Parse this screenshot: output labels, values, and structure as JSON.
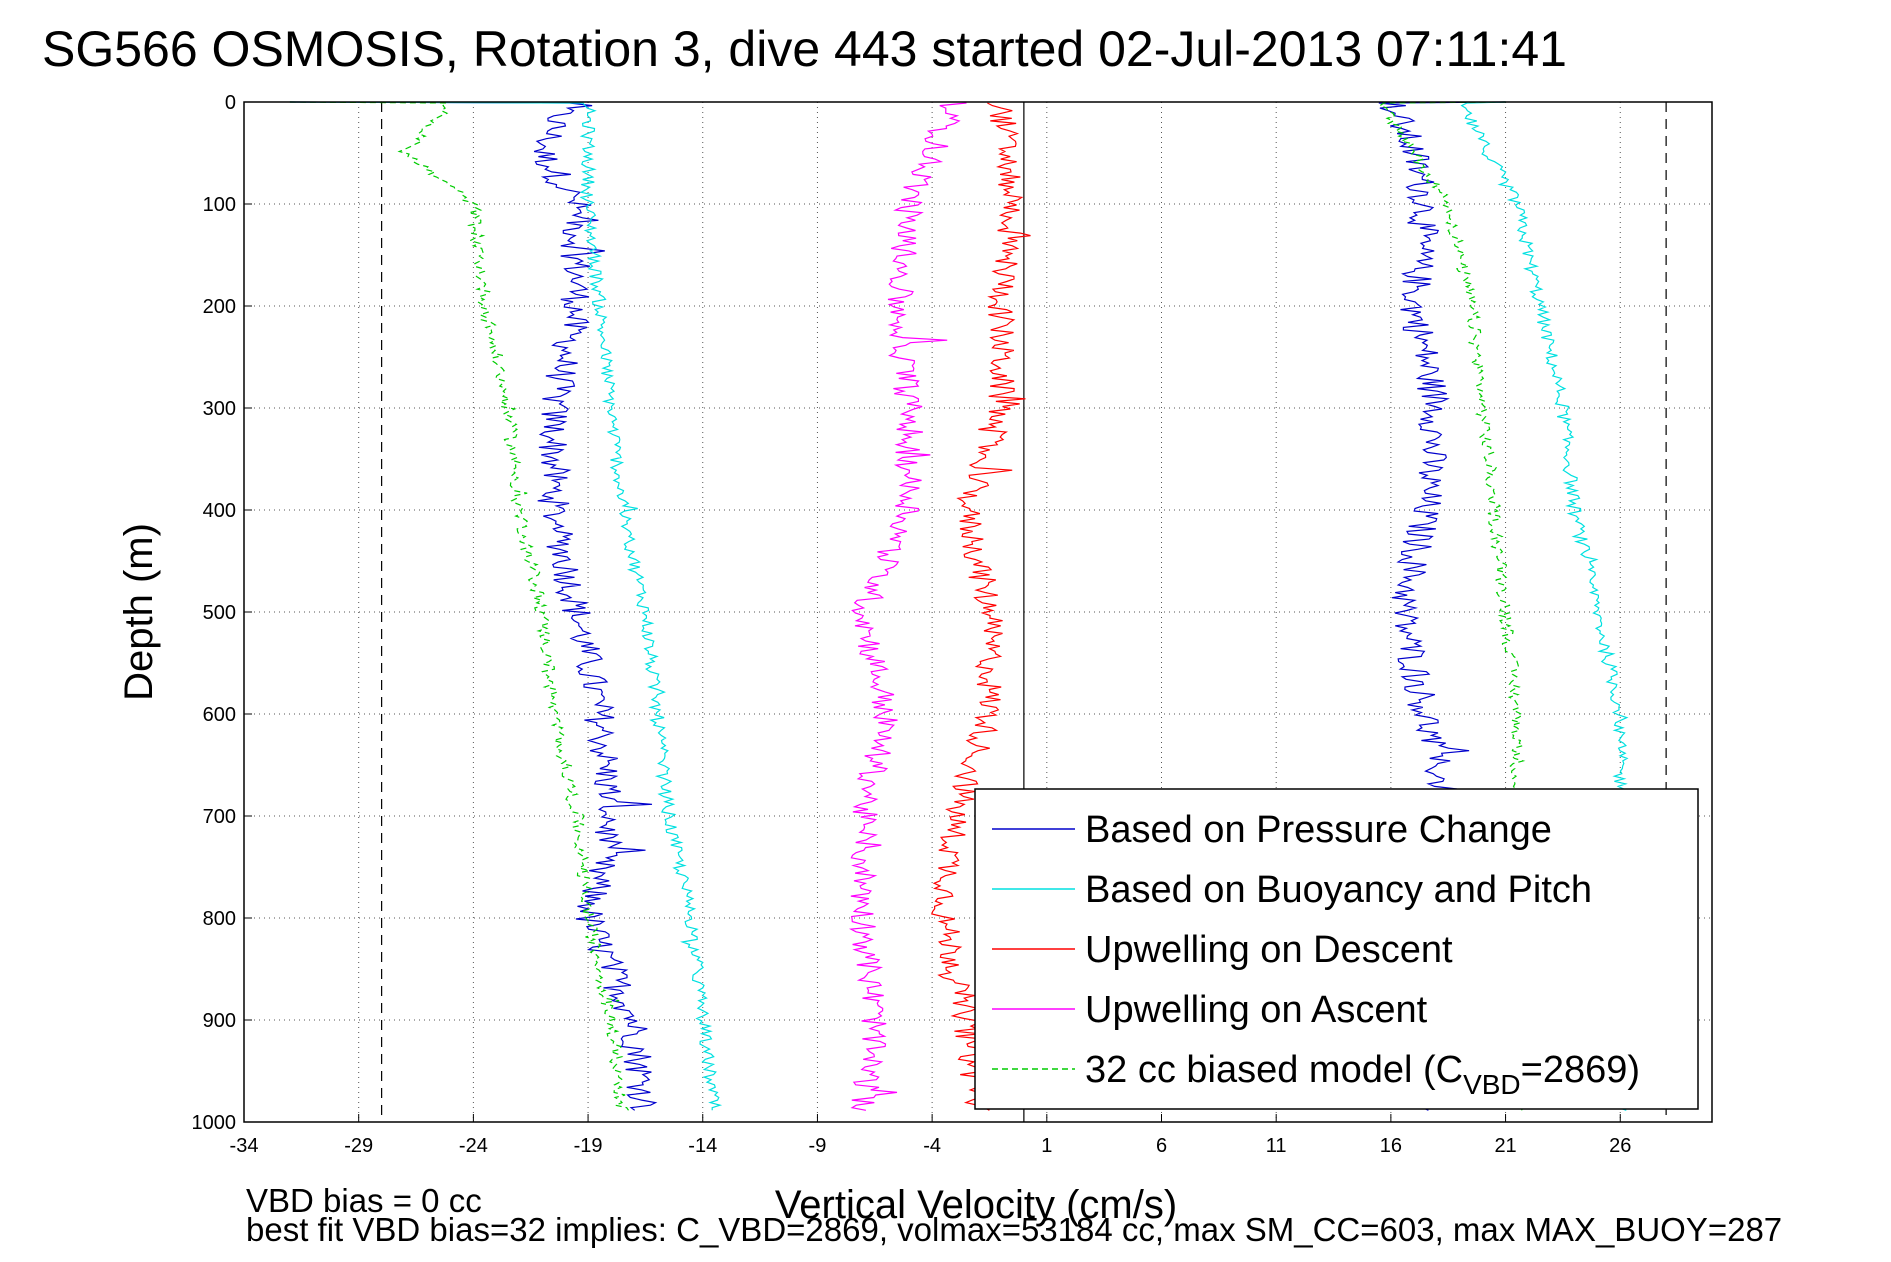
{
  "chart_data": {
    "type": "line",
    "title": "SG566 OSMOSIS, Rotation 3, dive 443 started 02-Jul-2013 07:11:41",
    "xlabel": "Vertical Velocity (cm/s)",
    "ylabel": "Depth (m)",
    "xlim": [
      -34,
      30
    ],
    "ylim": [
      0,
      1000
    ],
    "y_reversed": true,
    "xticks": [
      -34,
      -29,
      -24,
      -19,
      -14,
      -9,
      -4,
      1,
      6,
      11,
      16,
      21,
      26
    ],
    "yticks": [
      0,
      100,
      200,
      300,
      400,
      500,
      600,
      700,
      800,
      900,
      1000
    ],
    "grid": true,
    "legend_position": "bottom-right",
    "reference_lines": {
      "zero_line": 0,
      "dashed_limits": [
        -28,
        28
      ]
    },
    "series": [
      {
        "name": "Based on Pressure Change",
        "color": "#0000cc",
        "style": "solid",
        "descent": {
          "depth": [
            0,
            50,
            100,
            200,
            300,
            400,
            500,
            600,
            700,
            800,
            900,
            990
          ],
          "velocity": [
            -20,
            -21,
            -19.5,
            -19.5,
            -20.5,
            -20.5,
            -19.5,
            -18.5,
            -18,
            -19,
            -17,
            -16.5
          ]
        },
        "ascent": {
          "depth": [
            0,
            50,
            100,
            200,
            300,
            400,
            500,
            600,
            700,
            990
          ],
          "velocity": [
            16,
            17,
            17.5,
            17,
            18,
            17.5,
            16.5,
            17.5,
            18.5,
            17
          ]
        }
      },
      {
        "name": "Based on Buoyancy and Pitch",
        "color": "#00e0e0",
        "style": "solid",
        "descent": {
          "depth": [
            0,
            100,
            200,
            300,
            400,
            500,
            600,
            700,
            800,
            900,
            990
          ],
          "velocity": [
            -19,
            -19,
            -18.5,
            -18,
            -17.5,
            -16.5,
            -16,
            -15.5,
            -14.5,
            -14,
            -13.5
          ]
        },
        "ascent": {
          "depth": [
            0,
            100,
            200,
            300,
            400,
            500,
            600,
            700
          ],
          "velocity": [
            19,
            21.5,
            22.5,
            23.5,
            24,
            25,
            26,
            26
          ]
        }
      },
      {
        "name": "Upwelling on Descent",
        "color": "#ff0000",
        "style": "solid",
        "depth": [
          0,
          100,
          200,
          300,
          400,
          500,
          600,
          700,
          800,
          900,
          990
        ],
        "velocity": [
          -1,
          -0.5,
          -1,
          -1,
          -2.5,
          -1.5,
          -1.5,
          -3,
          -3.5,
          -2.5,
          -2
        ]
      },
      {
        "name": "Upwelling on Ascent",
        "color": "#ff00ff",
        "style": "solid",
        "depth": [
          0,
          100,
          200,
          300,
          400,
          500,
          600,
          700,
          800,
          900,
          990
        ],
        "velocity": [
          -3,
          -5,
          -5.5,
          -5,
          -5,
          -7,
          -6,
          -7,
          -7,
          -6.5,
          -7
        ]
      },
      {
        "name": "32 cc biased model",
        "color": "#00cc00",
        "style": "dashed",
        "descent": {
          "depth": [
            0,
            50,
            100,
            200,
            300,
            400,
            500,
            600,
            700,
            800,
            900,
            990
          ],
          "velocity": [
            -25,
            -27,
            -24,
            -23.5,
            -22.5,
            -22,
            -21,
            -20.5,
            -19.5,
            -19,
            -18,
            -17.5
          ]
        },
        "ascent": {
          "depth": [
            0,
            100,
            200,
            300,
            400,
            500,
            600,
            650,
            990
          ],
          "velocity": [
            15.5,
            18.5,
            19.5,
            20,
            20.5,
            21,
            21.5,
            21.5,
            21.5
          ]
        }
      }
    ]
  },
  "legend": {
    "entries": [
      {
        "label": "Based on Pressure Change",
        "color": "#0000cc",
        "dashed": false
      },
      {
        "label": "Based on Buoyancy and Pitch",
        "color": "#00e0e0",
        "dashed": false
      },
      {
        "label": "Upwelling on Descent",
        "color": "#ff0000",
        "dashed": false
      },
      {
        "label": "Upwelling on Ascent",
        "color": "#ff00ff",
        "dashed": false
      },
      {
        "label_main": "32 cc biased model (C",
        "label_sub": "VBD",
        "label_tail": "=2869)",
        "color": "#00cc00",
        "dashed": true
      }
    ]
  },
  "footer": {
    "line1": "VBD bias = 0 cc",
    "line2": "best fit VBD bias=32 implies: C_VBD=2869, volmax=53184 cc, max SM_CC=603, max MAX_BUOY=287"
  }
}
